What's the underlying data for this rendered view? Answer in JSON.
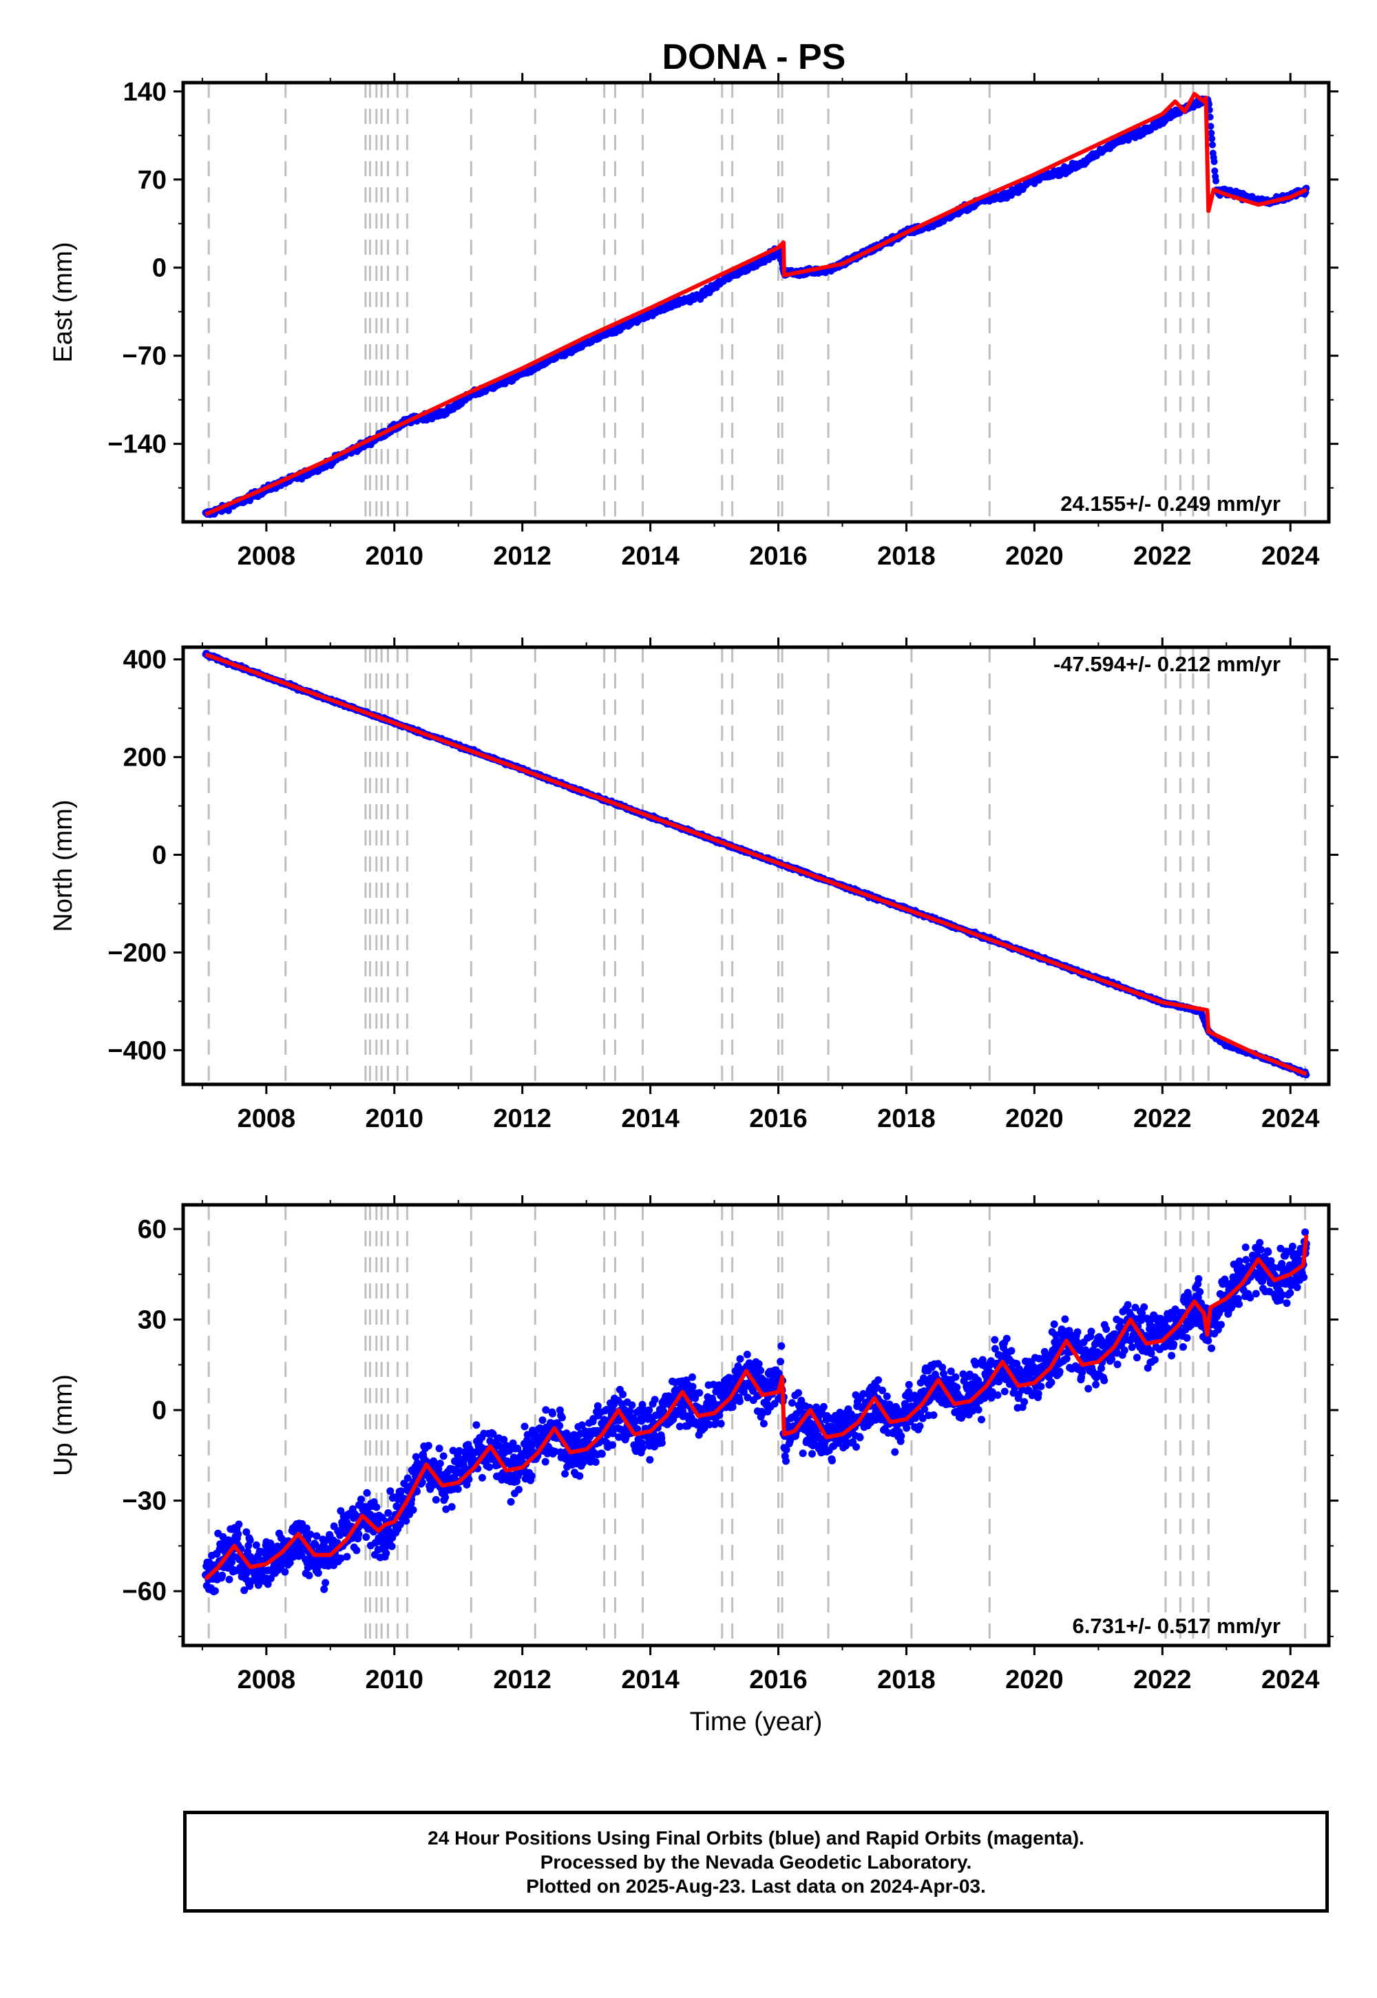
{
  "title": "DONA - PS",
  "chart_data": [
    {
      "type": "scatter",
      "panel": "east",
      "ylabel": "East (mm)",
      "xlabel": "",
      "xlim": [
        2006.7,
        2024.6
      ],
      "ylim": [
        -202,
        147
      ],
      "yticks": [
        140,
        70,
        0,
        -70,
        -140
      ],
      "ytick_labels": [
        "140",
        "70",
        "0",
        "−70",
        "−140"
      ],
      "xticks": [
        2008,
        2010,
        2012,
        2014,
        2016,
        2018,
        2020,
        2022,
        2024
      ],
      "xtick_labels": [
        "2008",
        "2010",
        "2012",
        "2014",
        "2016",
        "2018",
        "2020",
        "2022",
        "2024"
      ],
      "rate_label": "24.155+/- 0.249 mm/yr",
      "series": [
        {
          "color": "#0000ff",
          "role": "daily positions (blue)",
          "x": [
            2007.05,
            2007.3,
            2007.6,
            2008.0,
            2008.5,
            2008.9,
            2009.3,
            2009.6,
            2009.9,
            2010.2,
            2010.5,
            2010.8,
            2011.2,
            2011.6,
            2012.0,
            2012.4,
            2012.8,
            2013.2,
            2013.6,
            2014.0,
            2014.4,
            2014.8,
            2015.2,
            2015.6,
            2016.0,
            2016.09,
            2016.4,
            2016.8,
            2017.2,
            2017.6,
            2018.0,
            2018.4,
            2018.8,
            2019.2,
            2019.6,
            2020.0,
            2020.4,
            2020.8,
            2021.2,
            2021.6,
            2022.0,
            2022.3,
            2022.6,
            2022.72,
            2022.85,
            2023.1,
            2023.4,
            2023.7,
            2024.0,
            2024.25
          ],
          "y": [
            -196,
            -192,
            -186,
            -176,
            -166,
            -157,
            -146,
            -139,
            -130,
            -122,
            -118,
            -115,
            -101,
            -93,
            -84,
            -74,
            -65,
            -55,
            -46,
            -36,
            -28,
            -22,
            -8,
            2,
            14,
            -4,
            -4,
            -1,
            8,
            18,
            28,
            34,
            44,
            54,
            58,
            70,
            76,
            84,
            98,
            106,
            117,
            126,
            132,
            133,
            60,
            60,
            54,
            52,
            57,
            61
          ]
        },
        {
          "color": "#ff0000",
          "role": "model fit",
          "x": [
            2007.05,
            2008.0,
            2009.0,
            2010.0,
            2011.0,
            2012.0,
            2013.0,
            2014.0,
            2015.0,
            2016.0,
            2016.08,
            2016.09,
            2017.0,
            2018.0,
            2019.0,
            2020.0,
            2021.0,
            2022.0,
            2022.2,
            2022.35,
            2022.5,
            2022.65,
            2022.68,
            2022.72,
            2022.8,
            2023.0,
            2023.5,
            2024.0,
            2024.25
          ],
          "y": [
            -196,
            -175,
            -152,
            -127,
            -103,
            -80,
            -55,
            -32,
            -8,
            16,
            20,
            -6,
            3,
            28,
            52,
            74,
            98,
            122,
            132,
            124,
            138,
            132,
            135,
            45,
            62,
            58,
            50,
            56,
            62
          ]
        }
      ],
      "events": [
        2007.1,
        2008.3,
        2009.55,
        2009.62,
        2009.72,
        2009.8,
        2009.9,
        2010.05,
        2010.2,
        2011.2,
        2012.2,
        2013.28,
        2013.45,
        2013.88,
        2015.12,
        2015.28,
        2016.0,
        2016.06,
        2016.78,
        2018.08,
        2019.3,
        2022.05,
        2022.28,
        2022.48,
        2022.72,
        2024.23
      ]
    },
    {
      "type": "scatter",
      "panel": "north",
      "ylabel": "North (mm)",
      "xlabel": "",
      "xlim": [
        2006.7,
        2024.6
      ],
      "ylim": [
        -470,
        425
      ],
      "yticks": [
        400,
        200,
        0,
        -200,
        -400
      ],
      "ytick_labels": [
        "400",
        "200",
        "0",
        "−200",
        "−400"
      ],
      "xticks": [
        2008,
        2010,
        2012,
        2014,
        2016,
        2018,
        2020,
        2022,
        2024
      ],
      "xtick_labels": [
        "2008",
        "2010",
        "2012",
        "2014",
        "2016",
        "2018",
        "2020",
        "2022",
        "2024"
      ],
      "rate_label": "-47.594+/- 0.212 mm/yr",
      "series": [
        {
          "color": "#0000ff",
          "role": "daily positions (blue)",
          "x": [
            2007.05,
            2008.0,
            2009.0,
            2010.0,
            2011.0,
            2012.0,
            2013.0,
            2014.0,
            2015.0,
            2016.0,
            2017.0,
            2018.0,
            2019.0,
            2020.0,
            2021.0,
            2022.0,
            2022.6,
            2022.72,
            2023.0,
            2023.5,
            2024.0,
            2024.25
          ],
          "y": [
            410,
            364,
            317,
            270,
            223,
            175,
            126,
            78,
            30,
            -17,
            -64,
            -111,
            -159,
            -206,
            -254,
            -302,
            -320,
            -362,
            -390,
            -412,
            -436,
            -449
          ]
        },
        {
          "color": "#ff0000",
          "role": "model fit",
          "x": [
            2007.05,
            2010.0,
            2013.0,
            2016.0,
            2019.0,
            2022.0,
            2022.7,
            2022.72,
            2023.5,
            2024.25
          ],
          "y": [
            410,
            270,
            126,
            -17,
            -159,
            -302,
            -318,
            -362,
            -410,
            -449
          ]
        }
      ],
      "events": [
        2007.1,
        2008.3,
        2009.55,
        2009.62,
        2009.72,
        2009.8,
        2009.9,
        2010.05,
        2010.2,
        2011.2,
        2012.2,
        2013.28,
        2013.45,
        2013.88,
        2015.12,
        2015.28,
        2016.0,
        2016.06,
        2016.78,
        2018.08,
        2019.3,
        2022.05,
        2022.28,
        2022.48,
        2022.72,
        2024.23
      ]
    },
    {
      "type": "scatter",
      "panel": "up",
      "ylabel": "Up (mm)",
      "xlabel": "Time (year)",
      "xlim": [
        2006.7,
        2024.6
      ],
      "ylim": [
        -78,
        68
      ],
      "yticks": [
        60,
        30,
        0,
        -30,
        -60
      ],
      "ytick_labels": [
        "60",
        "30",
        "0",
        "−30",
        "−60"
      ],
      "xticks": [
        2008,
        2010,
        2012,
        2014,
        2016,
        2018,
        2020,
        2022,
        2024
      ],
      "xtick_labels": [
        "2008",
        "2010",
        "2012",
        "2014",
        "2016",
        "2018",
        "2020",
        "2022",
        "2024"
      ],
      "rate_label": "6.731+/- 0.517 mm/yr",
      "series": [
        {
          "color": "#0000ff",
          "role": "daily positions (blue)",
          "x": [
            2007.05,
            2007.5,
            2007.8,
            2008.2,
            2008.5,
            2008.8,
            2009.2,
            2009.5,
            2009.8,
            2010.1,
            2010.4,
            2010.8,
            2011.2,
            2011.5,
            2011.8,
            2012.2,
            2012.5,
            2012.8,
            2013.2,
            2013.5,
            2013.8,
            2014.2,
            2014.5,
            2014.8,
            2015.2,
            2015.5,
            2015.8,
            2016.05,
            2016.09,
            2016.4,
            2016.8,
            2017.2,
            2017.5,
            2017.8,
            2018.2,
            2018.5,
            2018.8,
            2019.2,
            2019.5,
            2019.8,
            2020.2,
            2020.5,
            2020.8,
            2021.2,
            2021.5,
            2021.8,
            2022.2,
            2022.5,
            2022.7,
            2023.0,
            2023.5,
            2023.8,
            2024.1,
            2024.25
          ],
          "y": [
            -55,
            -46,
            -52,
            -48,
            -42,
            -50,
            -42,
            -35,
            -40,
            -33,
            -18,
            -24,
            -17,
            -14,
            -20,
            -13,
            -7,
            -14,
            -8,
            -1,
            -8,
            -3,
            5,
            -2,
            5,
            13,
            6,
            10,
            -8,
            -3,
            -9,
            -4,
            4,
            -4,
            2,
            10,
            3,
            8,
            16,
            8,
            14,
            23,
            16,
            20,
            30,
            22,
            28,
            36,
            27,
            38,
            49,
            43,
            47,
            55
          ]
        },
        {
          "color": "#ff0000",
          "role": "model fit",
          "x": [
            2007.05,
            2007.25,
            2007.5,
            2007.75,
            2008.0,
            2008.25,
            2008.5,
            2008.75,
            2009.0,
            2009.25,
            2009.5,
            2009.75,
            2009.85,
            2010.0,
            2010.2,
            2010.5,
            2010.75,
            2011.0,
            2011.25,
            2011.5,
            2011.75,
            2012.0,
            2012.25,
            2012.5,
            2012.75,
            2013.0,
            2013.25,
            2013.5,
            2013.75,
            2014.0,
            2014.25,
            2014.5,
            2014.75,
            2015.0,
            2015.25,
            2015.5,
            2015.75,
            2016.0,
            2016.06,
            2016.09,
            2016.25,
            2016.5,
            2016.75,
            2017.0,
            2017.25,
            2017.5,
            2017.75,
            2018.0,
            2018.25,
            2018.5,
            2018.75,
            2019.0,
            2019.25,
            2019.5,
            2019.75,
            2020.0,
            2020.25,
            2020.5,
            2020.75,
            2021.0,
            2021.25,
            2021.5,
            2021.75,
            2022.0,
            2022.25,
            2022.5,
            2022.65,
            2022.7,
            2022.75,
            2023.0,
            2023.25,
            2023.5,
            2023.75,
            2024.0,
            2024.2,
            2024.25
          ],
          "y": [
            -56,
            -52,
            -45,
            -52,
            -51,
            -47,
            -41,
            -48,
            -48,
            -43,
            -35,
            -40,
            -38,
            -37,
            -30,
            -18,
            -25,
            -24,
            -19,
            -12,
            -20,
            -19,
            -14,
            -6,
            -14,
            -13,
            -8,
            0,
            -8,
            -7,
            -2,
            6,
            -2,
            -1,
            4,
            13,
            5,
            6,
            11,
            -8,
            -7,
            0,
            -9,
            -8,
            -4,
            4,
            -4,
            -3,
            2,
            10,
            2,
            3,
            8,
            16,
            8,
            9,
            14,
            23,
            15,
            16,
            21,
            30,
            22,
            23,
            28,
            36,
            32,
            25,
            34,
            37,
            42,
            50,
            43,
            45,
            48,
            58
          ]
        }
      ],
      "events": [
        2007.1,
        2008.3,
        2009.55,
        2009.62,
        2009.72,
        2009.8,
        2009.9,
        2010.05,
        2010.2,
        2011.2,
        2012.2,
        2013.28,
        2013.45,
        2013.88,
        2015.12,
        2015.28,
        2016.0,
        2016.06,
        2016.78,
        2018.08,
        2019.3,
        2022.05,
        2022.28,
        2022.48,
        2022.72,
        2024.23
      ]
    }
  ],
  "footer": {
    "line1": "24 Hour Positions Using Final Orbits (blue) and Rapid Orbits (magenta).",
    "line2": "Processed by the Nevada Geodetic Laboratory.",
    "line3": "Plotted on 2025-Aug-23. Last data on 2024-Apr-03."
  }
}
